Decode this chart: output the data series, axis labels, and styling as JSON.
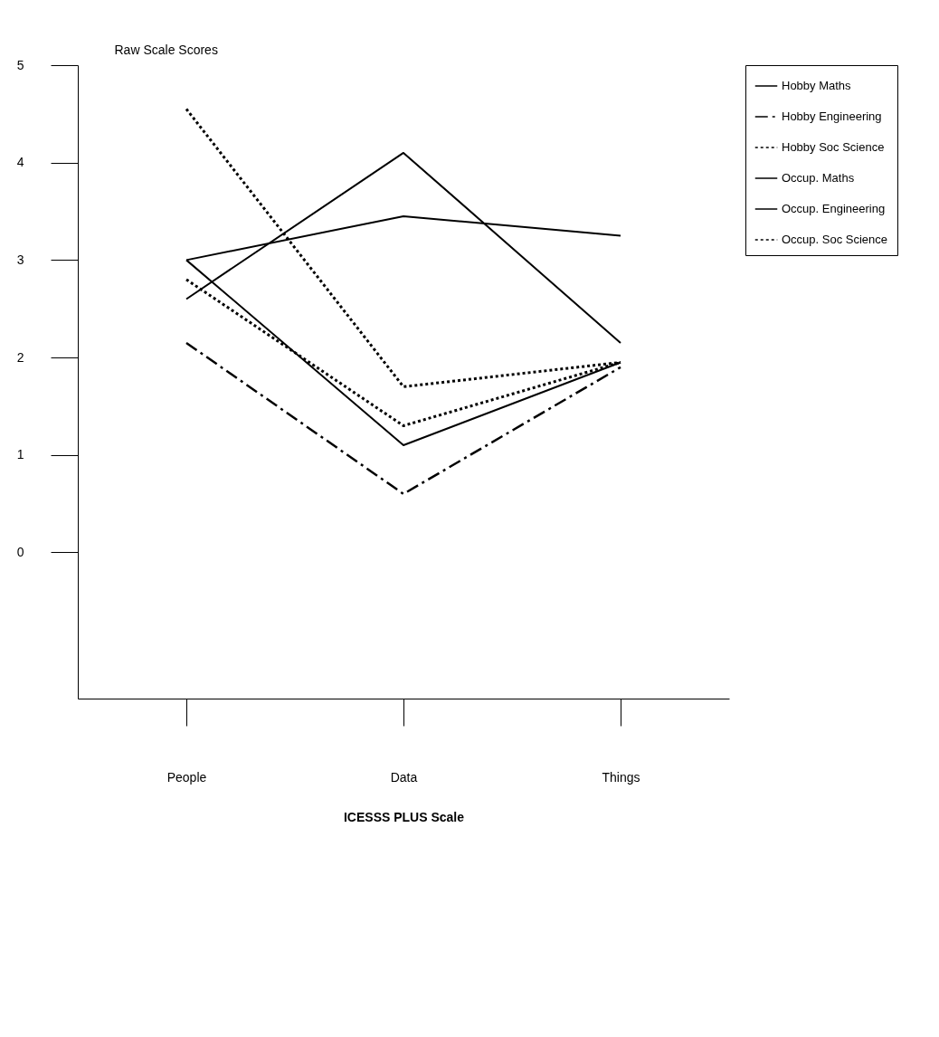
{
  "chart_data": {
    "type": "line",
    "ylabel": "Raw Scale Scores",
    "xlabel": "ICESSS PLUS Scale",
    "categories": [
      "People",
      "Data",
      "Things"
    ],
    "ylim": [
      -1.5,
      5
    ],
    "yticks": [
      0,
      1,
      2,
      3,
      4,
      5
    ],
    "grid": false,
    "legend": "top right",
    "series": [
      {
        "name": "Hobby Maths",
        "color": "#000000",
        "line_style": "solid",
        "values": [
          3.0,
          1.1,
          1.95
        ]
      },
      {
        "name": "Hobby Engineering",
        "color": "#000000",
        "line_style": "dashed",
        "values": [
          2.15,
          0.6,
          1.9
        ]
      },
      {
        "name": "Hobby Soc Science",
        "color": "#000000",
        "line_style": "dotted",
        "values": [
          2.8,
          1.3,
          1.95
        ]
      },
      {
        "name": "Occup. Maths",
        "color": "#000000",
        "line_style": "solid",
        "values": [
          2.6,
          4.1,
          2.15
        ]
      },
      {
        "name": "Occup. Engineering",
        "color": "#000000",
        "line_style": "solid",
        "values": [
          3.0,
          3.45,
          3.25
        ]
      },
      {
        "name": "Occup. Soc Science",
        "color": "#000000",
        "line_style": "dotted",
        "values": [
          4.55,
          1.7,
          1.95
        ]
      }
    ]
  }
}
